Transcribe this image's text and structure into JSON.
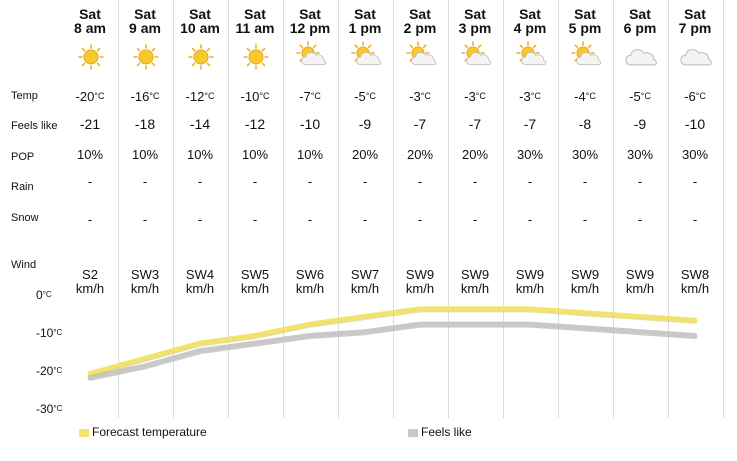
{
  "columns": [
    {
      "day": "Sat",
      "time": "8 am",
      "icon": "sun-icon",
      "temp": "-20",
      "feels": "-21",
      "pop": "10%",
      "rain": "-",
      "snow": "-",
      "wind_dir": "S2",
      "wind_unit": "km/h"
    },
    {
      "day": "Sat",
      "time": "9 am",
      "icon": "sun-icon",
      "temp": "-16",
      "feels": "-18",
      "pop": "10%",
      "rain": "-",
      "snow": "-",
      "wind_dir": "SW3",
      "wind_unit": "km/h"
    },
    {
      "day": "Sat",
      "time": "10 am",
      "icon": "sun-icon",
      "temp": "-12",
      "feels": "-14",
      "pop": "10%",
      "rain": "-",
      "snow": "-",
      "wind_dir": "SW4",
      "wind_unit": "km/h"
    },
    {
      "day": "Sat",
      "time": "11 am",
      "icon": "sun-icon",
      "temp": "-10",
      "feels": "-12",
      "pop": "10%",
      "rain": "-",
      "snow": "-",
      "wind_dir": "SW5",
      "wind_unit": "km/h"
    },
    {
      "day": "Sat",
      "time": "12 pm",
      "icon": "sun-cloud-icon",
      "temp": "-7",
      "feels": "-10",
      "pop": "10%",
      "rain": "-",
      "snow": "-",
      "wind_dir": "SW6",
      "wind_unit": "km/h"
    },
    {
      "day": "Sat",
      "time": "1 pm",
      "icon": "sun-cloud-icon",
      "temp": "-5",
      "feels": "-9",
      "pop": "20%",
      "rain": "-",
      "snow": "-",
      "wind_dir": "SW7",
      "wind_unit": "km/h"
    },
    {
      "day": "Sat",
      "time": "2 pm",
      "icon": "sun-cloud-icon",
      "temp": "-3",
      "feels": "-7",
      "pop": "20%",
      "rain": "-",
      "snow": "-",
      "wind_dir": "SW9",
      "wind_unit": "km/h"
    },
    {
      "day": "Sat",
      "time": "3 pm",
      "icon": "sun-cloud-icon",
      "temp": "-3",
      "feels": "-7",
      "pop": "20%",
      "rain": "-",
      "snow": "-",
      "wind_dir": "SW9",
      "wind_unit": "km/h"
    },
    {
      "day": "Sat",
      "time": "4 pm",
      "icon": "sun-cloud-icon",
      "temp": "-3",
      "feels": "-7",
      "pop": "30%",
      "rain": "-",
      "snow": "-",
      "wind_dir": "SW9",
      "wind_unit": "km/h"
    },
    {
      "day": "Sat",
      "time": "5 pm",
      "icon": "sun-cloud-icon",
      "temp": "-4",
      "feels": "-8",
      "pop": "30%",
      "rain": "-",
      "snow": "-",
      "wind_dir": "SW9",
      "wind_unit": "km/h"
    },
    {
      "day": "Sat",
      "time": "6 pm",
      "icon": "cloud-icon",
      "temp": "-5",
      "feels": "-9",
      "pop": "30%",
      "rain": "-",
      "snow": "-",
      "wind_dir": "SW9",
      "wind_unit": "km/h"
    },
    {
      "day": "Sat",
      "time": "7 pm",
      "icon": "cloud-icon",
      "temp": "-6",
      "feels": "-10",
      "pop": "30%",
      "rain": "-",
      "snow": "-",
      "wind_dir": "SW8",
      "wind_unit": "km/h"
    }
  ],
  "row_labels": {
    "temp": "Temp",
    "feels": "Feels like",
    "pop": "POP",
    "rain": "Rain",
    "snow": "Snow",
    "wind": "Wind"
  },
  "temp_unit": "°C",
  "colors": {
    "forecast": "#f2e36a",
    "feels": "#c8c8c8",
    "divider": "#dcdcdc"
  },
  "chart_data": {
    "type": "line",
    "categories": [
      "8 am",
      "9 am",
      "10 am",
      "11 am",
      "12 pm",
      "1 pm",
      "2 pm",
      "3 pm",
      "4 pm",
      "5 pm",
      "6 pm",
      "7 pm"
    ],
    "series": [
      {
        "name": "Forecast temperature",
        "values": [
          -20,
          -16,
          -12,
          -10,
          -7,
          -5,
          -3,
          -3,
          -3,
          -4,
          -5,
          -6
        ],
        "color": "#f2e36a"
      },
      {
        "name": "Feels like",
        "values": [
          -21,
          -18,
          -14,
          -12,
          -10,
          -9,
          -7,
          -7,
          -7,
          -8,
          -9,
          -10
        ],
        "color": "#c8c8c8"
      }
    ],
    "yticks": [
      0,
      -10,
      -20,
      -30
    ],
    "ylim": [
      -30,
      0
    ],
    "ylabel_unit": "°C",
    "legend": "bottom",
    "grid": "vertical"
  }
}
